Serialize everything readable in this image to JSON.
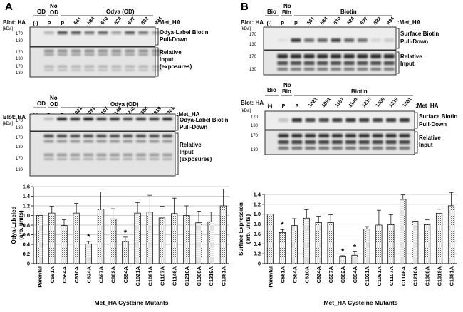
{
  "panelA": {
    "letter": "A",
    "blot1": {
      "blot_label": "Blot: HA",
      "lane_hdr_neg": "(-)",
      "hdr_od": "OD",
      "hdr_no_od": "No OD",
      "hdr_no": "No",
      "hdr_od2": "OD",
      "hdr_group": "Odya (OD)",
      "construct": ":Met_HA",
      "kda": "[kDa]",
      "lanes": [
        "(-)",
        "P",
        "P",
        "561",
        "584",
        "610",
        "624",
        "697",
        "882",
        "894"
      ],
      "markers_top": [
        "170",
        "130"
      ],
      "markers_bottom": [
        "170",
        "130",
        "170",
        "130"
      ],
      "right_label_top": [
        "Odya-Label Biotin",
        "Pull-Down"
      ],
      "right_label_bottom": [
        "Relative",
        "Input",
        "(exposures)"
      ]
    },
    "blot2": {
      "blot_label": "Blot: HA",
      "hdr_od": "OD",
      "hdr_no": "No",
      "hdr_od2": "OD",
      "hdr_group": "Odya (OD)",
      "construct": ":Met_HA",
      "kda": "[kDa]",
      "lanes": [
        "(-)",
        "P",
        "P",
        "1021",
        "1091",
        "1107",
        "1146",
        "1210",
        "1308",
        "1319",
        "1361"
      ],
      "markers_top": [
        "170",
        "130"
      ],
      "markers_bottom": [
        "170",
        "130",
        "170",
        "130"
      ],
      "right_label_top": [
        "Odya-Label Biotin",
        "Pull-Down"
      ],
      "right_label_bottom": [
        "Relative",
        "Input",
        "(exposures)"
      ]
    }
  },
  "panelB": {
    "letter": "B",
    "blot1": {
      "blot_label": "Blot: HA",
      "hdr_bio": "Bio",
      "hdr_no": "No",
      "hdr_bio2": "Bio",
      "hdr_group": "Biotin",
      "construct": ":Met_HA",
      "kda": "[kDa]",
      "lanes": [
        "(-)",
        "P",
        "P",
        "561",
        "584",
        "610",
        "624",
        "697",
        "882",
        "894"
      ],
      "markers_top": [
        "170",
        "130"
      ],
      "markers_bottom": [
        "170",
        "130"
      ],
      "right_label_top": [
        "Surface Biotin",
        "Pull-Down"
      ],
      "right_label_bottom": [
        "Relative",
        "Input"
      ]
    },
    "blot2": {
      "blot_label": "Blot: HA",
      "hdr_bio": "Bio",
      "hdr_no": "No",
      "hdr_bio2": "Bio",
      "hdr_group": "Biotin",
      "construct": ":Met_HA",
      "kda": "[kDa]",
      "lanes": [
        "(-)",
        "P",
        "P",
        "1021",
        "1091",
        "1107",
        "1146",
        "1210",
        "1308",
        "1319",
        "1361"
      ],
      "markers_top": [
        "170",
        "130"
      ],
      "markers_bottom": [
        "170",
        "130"
      ],
      "right_label_top": [
        "Surface Biotin",
        "Pull-Down"
      ],
      "right_label_bottom": [
        "Relative",
        "Input"
      ]
    }
  },
  "chart_data": [
    {
      "type": "bar",
      "panel": "A",
      "title": "",
      "xlabel": "Met_HA Cysteine Mutants",
      "ylabel": "Odya-Labeled (arb. units)",
      "ylim": [
        0,
        1.6
      ],
      "yticks": [
        0,
        0.2,
        0.4,
        0.6,
        0.8,
        1.0,
        1.2,
        1.4,
        1.6
      ],
      "ytick_labels": [
        "0",
        "0.2",
        "0.4",
        "0.6",
        "0.8",
        "1.0",
        "1.2",
        "1.4",
        "1.6"
      ],
      "grid": true,
      "categories": [
        "Parental",
        "C561A",
        "C584A",
        "C610A",
        "C624A",
        "C697A",
        "C882A",
        "C894A",
        "C1021A",
        "C1091A",
        "C1107A",
        "C1146A",
        "C1210A",
        "C1308A",
        "C1319A",
        "C1361A"
      ],
      "values": [
        1.0,
        1.05,
        0.79,
        1.05,
        0.41,
        1.13,
        0.93,
        0.46,
        1.05,
        1.07,
        0.95,
        1.04,
        1.0,
        0.85,
        0.87,
        1.2
      ],
      "errors": [
        0.0,
        0.14,
        0.12,
        0.2,
        0.05,
        0.36,
        0.21,
        0.09,
        0.22,
        0.35,
        0.24,
        0.32,
        0.2,
        0.24,
        0.2,
        0.35
      ],
      "significant": [
        "",
        "",
        "",
        "",
        "*",
        "",
        "",
        "*",
        "",
        "",
        "",
        "",
        "",
        "",
        "",
        ""
      ]
    },
    {
      "type": "bar",
      "panel": "B",
      "title": "",
      "xlabel": "Met_HA Cysteine Mutants",
      "ylabel": "Surface Expression (arb. units)",
      "ylim": [
        0,
        1.4
      ],
      "yticks": [
        0,
        0.2,
        0.4,
        0.6,
        0.8,
        1.0,
        1.2,
        1.4
      ],
      "ytick_labels": [
        "0",
        "0.2",
        "0.4",
        "0.6",
        "0.8",
        "1.0",
        "1.2",
        "1.4"
      ],
      "grid": true,
      "categories": [
        "Parental",
        "C561A",
        "C584A",
        "C610A",
        "C624A",
        "C697A",
        "C882A",
        "C894A",
        "C1021A",
        "C1091A",
        "C1107A",
        "C1146A",
        "C1210A",
        "C1308A",
        "C1319A",
        "C1361A"
      ],
      "values": [
        1.0,
        0.63,
        0.77,
        0.92,
        0.83,
        0.83,
        0.14,
        0.17,
        0.7,
        0.78,
        0.79,
        1.3,
        0.86,
        0.79,
        1.02,
        1.17
      ],
      "errors": [
        0.0,
        0.06,
        0.14,
        0.17,
        0.13,
        0.16,
        0.02,
        0.07,
        0.05,
        0.3,
        0.2,
        0.09,
        0.04,
        0.1,
        0.08,
        0.27
      ],
      "significant": [
        "",
        "*",
        "",
        "",
        "",
        "",
        "*",
        "*",
        "",
        "",
        "",
        "",
        "",
        "",
        "",
        ""
      ]
    }
  ]
}
